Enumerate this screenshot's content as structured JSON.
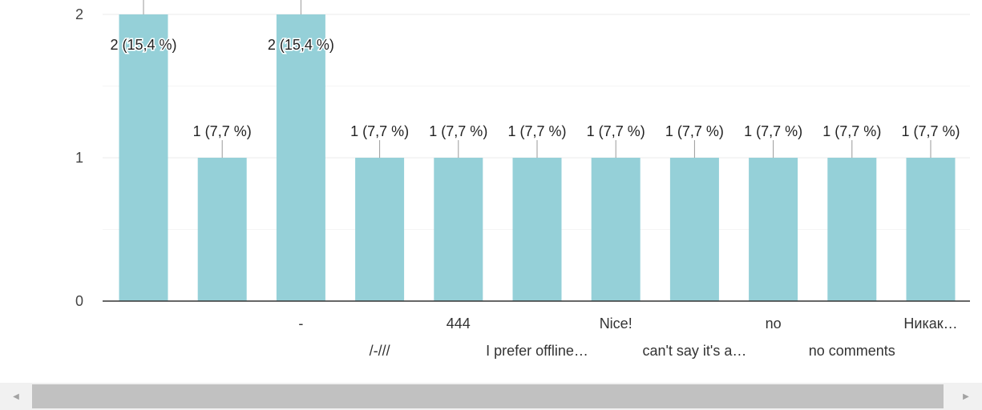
{
  "chart_data": {
    "type": "bar",
    "categories": [
      "",
      "",
      "-",
      "/-///",
      "444",
      "I prefer offline…",
      "Nice!",
      "can't say it's a…",
      "no",
      "no comments",
      "Никак…"
    ],
    "values": [
      2,
      1,
      2,
      1,
      1,
      1,
      1,
      1,
      1,
      1,
      1
    ],
    "data_labels": [
      "2 (15,4 %)",
      "1 (7,7 %)",
      "2 (15,4 %)",
      "1 (7,7 %)",
      "1 (7,7 %)",
      "1 (7,7 %)",
      "1 (7,7 %)",
      "1 (7,7 %)",
      "1 (7,7 %)",
      "1 (7,7 %)",
      "1 (7,7 %)"
    ],
    "y_ticks": [
      0,
      1,
      2
    ],
    "ylim": [
      0,
      2
    ],
    "grid": true,
    "bar_color": "#95d0d8",
    "axis_color": "#333333",
    "grid_color": "#ebebeb"
  },
  "scrollbar": {
    "left_icon": "arrow-left-icon",
    "right_icon": "arrow-right-icon",
    "left_glyph": "◀",
    "right_glyph": "▶"
  }
}
